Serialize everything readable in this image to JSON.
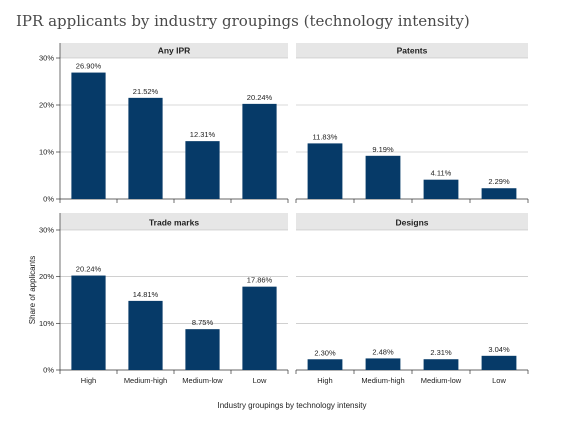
{
  "page": {
    "title": "IPR applicants by industry groupings (technology intensity)"
  },
  "axes": {
    "ylabel": "Share of applicants",
    "xlabel": "Industry groupings by technology intensity"
  },
  "chart_data": [
    {
      "type": "bar",
      "title": "Any IPR",
      "categories": [
        "High",
        "Medium-high",
        "Medium-low",
        "Low"
      ],
      "values": [
        26.9,
        21.52,
        12.31,
        20.24
      ],
      "value_labels": [
        "26.90%",
        "21.52%",
        "12.31%",
        "20.24%"
      ],
      "ylim": [
        0,
        30
      ],
      "yticks": [
        "0%",
        "10%",
        "20%",
        "30%"
      ],
      "grid": true
    },
    {
      "type": "bar",
      "title": "Patents",
      "categories": [
        "High",
        "Medium-high",
        "Medium-low",
        "Low"
      ],
      "values": [
        11.83,
        9.19,
        4.11,
        2.29
      ],
      "value_labels": [
        "11.83%",
        "9.19%",
        "4.11%",
        "2.29%"
      ],
      "ylim": [
        0,
        30
      ],
      "grid": true
    },
    {
      "type": "bar",
      "title": "Trade marks",
      "categories": [
        "High",
        "Medium-high",
        "Medium-low",
        "Low"
      ],
      "values": [
        20.24,
        14.81,
        8.75,
        17.86
      ],
      "value_labels": [
        "20.24%",
        "14.81%",
        "8.75%",
        "17.86%"
      ],
      "ylim": [
        0,
        30
      ],
      "yticks": [
        "0%",
        "10%",
        "20%",
        "30%"
      ],
      "grid": true
    },
    {
      "type": "bar",
      "title": "Designs",
      "categories": [
        "High",
        "Medium-high",
        "Medium-low",
        "Low"
      ],
      "values": [
        2.3,
        2.48,
        2.31,
        3.04
      ],
      "value_labels": [
        "2.30%",
        "2.48%",
        "2.31%",
        "3.04%"
      ],
      "ylim": [
        0,
        30
      ],
      "grid": true
    }
  ],
  "colors": {
    "bar": "#063a68",
    "header_bg": "#e6e6e6",
    "grid": "#b3b3b3",
    "text": "#222222"
  }
}
